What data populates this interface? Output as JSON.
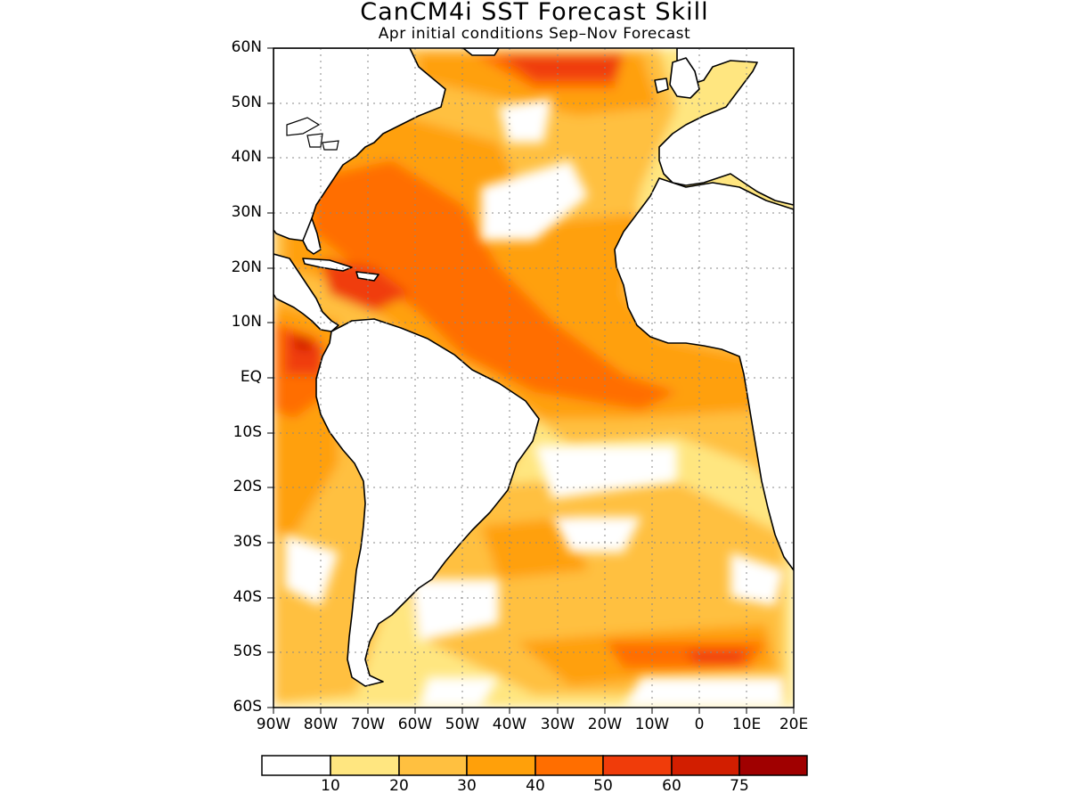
{
  "title": "CanCM4i SST Forecast Skill",
  "subtitle": "Apr initial conditions  Sep–Nov Forecast",
  "lat_labels": [
    "60N",
    "50N",
    "40N",
    "30N",
    "20N",
    "10N",
    "EQ",
    "10S",
    "20S",
    "30S",
    "40S",
    "50S",
    "60S"
  ],
  "lon_labels": [
    "90W",
    "80W",
    "70W",
    "60W",
    "50W",
    "40W",
    "30W",
    "20W",
    "10W",
    "0",
    "10E",
    "20E"
  ],
  "colorbar": {
    "levels": [
      "10",
      "20",
      "30",
      "40",
      "50",
      "60",
      "75"
    ],
    "colors": [
      "#ffffff",
      "#ffe680",
      "#ffc040",
      "#ffa00a",
      "#ff6e00",
      "#f03c0a",
      "#d21e00",
      "#a00000"
    ]
  }
}
